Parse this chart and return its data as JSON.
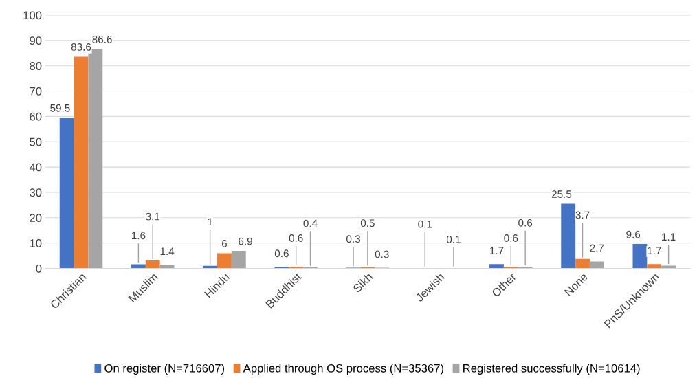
{
  "chart_data": {
    "type": "bar",
    "categories": [
      "Christian",
      "Muslim",
      "Hindu",
      "Buddhist",
      "Sikh",
      "Jewish",
      "Other",
      "None",
      "PnS/Unknown"
    ],
    "series": [
      {
        "name": "On register (N=716607)",
        "color": "#4472c4",
        "values": [
          59.5,
          1.6,
          1,
          0.6,
          0.3,
          0.1,
          1.7,
          25.5,
          9.6
        ],
        "value_labels": [
          "59.5",
          "1.6",
          "1",
          "0.6",
          "0.3",
          "0.1",
          "1.7",
          "25.5",
          "9.6"
        ]
      },
      {
        "name": "Applied through OS process (N=35367)",
        "color": "#ed7d31",
        "values": [
          83.6,
          3.1,
          6,
          0.6,
          0.5,
          0,
          0.6,
          3.7,
          1.7
        ],
        "value_labels": [
          "83.6",
          "3.1",
          "6",
          "0.6",
          "0.5",
          null,
          "0.6",
          "3.7",
          "1.7"
        ]
      },
      {
        "name": "Registered successfully (N=10614)",
        "color": "#a5a5a5",
        "values": [
          86.6,
          1.4,
          6.9,
          0.4,
          0.3,
          0.1,
          0.6,
          2.7,
          1.1
        ],
        "value_labels": [
          "86.6",
          "1.4",
          "6.9",
          "0.4",
          "0.3",
          "0.1",
          "0.6",
          "2.7",
          "1.1"
        ]
      }
    ],
    "ylim": [
      0,
      100
    ],
    "yticks": [
      0,
      10,
      20,
      30,
      40,
      50,
      60,
      70,
      80,
      90,
      100
    ],
    "grid": "y",
    "legend": "bottom"
  }
}
